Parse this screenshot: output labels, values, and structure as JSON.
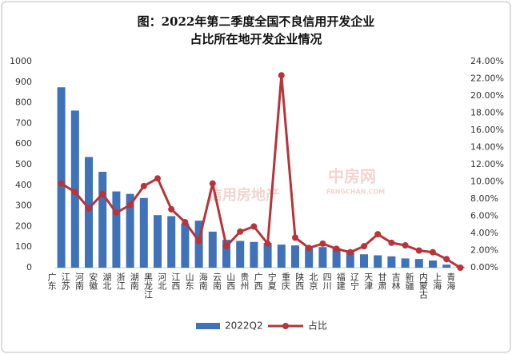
{
  "chart_data": {
    "type": "bar_line",
    "title": [
      "图：2022年第二季度全国不良信用开发企业",
      "占比所在地开发企业情况"
    ],
    "watermark": [
      "中房网",
      "FANGCHAN.COM",
      "信用房地产"
    ],
    "categories": [
      "广东",
      "江苏",
      "河南",
      "安徽",
      "湖北",
      "浙江",
      "湖南",
      "黑龙江",
      "河北",
      "江西",
      "山东",
      "海南",
      "云南",
      "山西",
      "贵州",
      "广西",
      "宁夏",
      "重庆",
      "陕西",
      "北京",
      "四川",
      "福建",
      "辽宁",
      "天津",
      "甘肃",
      "吉林",
      "新疆",
      "内蒙古",
      "上海",
      "青海"
    ],
    "series": [
      {
        "name": "2022Q2",
        "type": "bar",
        "color": "#3f72b8",
        "values": [
          875,
          762,
          537,
          465,
          370,
          358,
          338,
          255,
          250,
          215,
          228,
          175,
          135,
          130,
          125,
          120,
          112,
          108,
          100,
          100,
          95,
          80,
          65,
          60,
          55,
          45,
          42,
          35,
          15,
          5
        ]
      },
      {
        "name": "占比",
        "type": "line",
        "axis": "y2",
        "color": "#b73438",
        "values": [
          9.8,
          8.8,
          6.9,
          8.6,
          6.4,
          7.3,
          9.5,
          10.4,
          6.8,
          5.3,
          3.1,
          9.8,
          2.5,
          4.2,
          4.8,
          2.8,
          22.4,
          3.5,
          2.3,
          2.8,
          2.2,
          1.8,
          2.5,
          3.9,
          2.9,
          2.6,
          2.0,
          1.8,
          1.0,
          0.0
        ]
      }
    ],
    "ylim": [
      0,
      1000
    ],
    "yticks": [
      0,
      100,
      200,
      300,
      400,
      500,
      600,
      700,
      800,
      900,
      1000
    ],
    "y2lim": [
      0,
      24
    ],
    "y2ticks": [
      {
        "value": 0,
        "label": "0.00%"
      },
      {
        "value": 2,
        "label": "2.00%"
      },
      {
        "value": 4,
        "label": "4.00%"
      },
      {
        "value": 6,
        "label": "6.00%"
      },
      {
        "value": 8,
        "label": "8.00%"
      },
      {
        "value": 10,
        "label": "10.00%"
      },
      {
        "value": 12,
        "label": "12.00%"
      },
      {
        "value": 14,
        "label": "14.00%"
      },
      {
        "value": 16,
        "label": "16.00%"
      },
      {
        "value": 18,
        "label": "18.00%"
      },
      {
        "value": 20,
        "label": "20.00%"
      },
      {
        "value": 22,
        "label": "22.00%"
      },
      {
        "value": 24,
        "label": "24.00%"
      }
    ],
    "grid": false,
    "legend": "bottom"
  }
}
